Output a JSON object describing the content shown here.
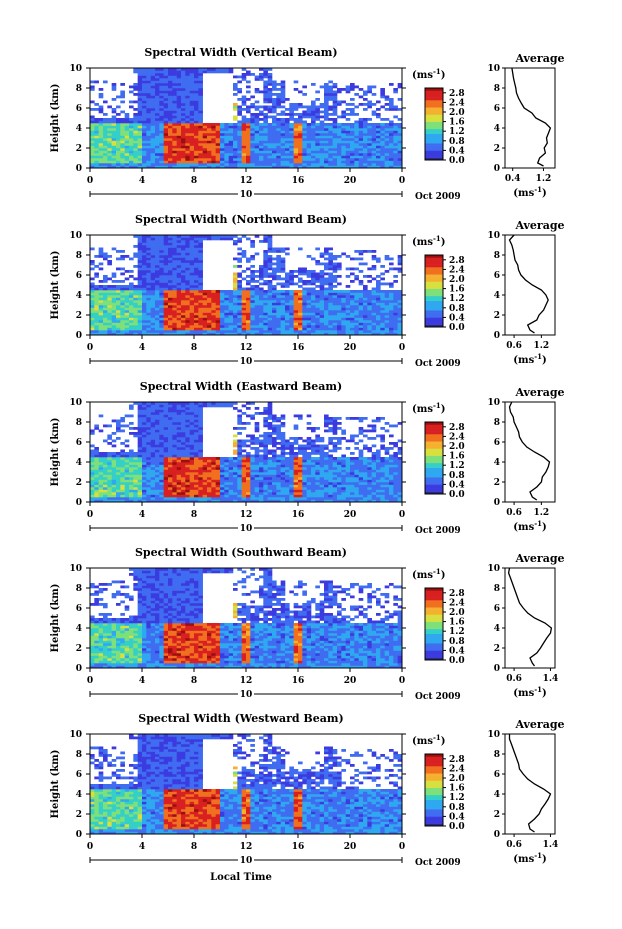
{
  "colors": {
    "scale": [
      "#2a2a78",
      "#3b3be0",
      "#3f6cf0",
      "#2fa8f0",
      "#34d0c8",
      "#7fe07a",
      "#d8e040",
      "#f5b030",
      "#f07020",
      "#d82020",
      "#9a1010"
    ]
  },
  "shared": {
    "xlabel": "Local Time",
    "x_ticks": [
      "0",
      "4",
      "8",
      "12",
      "16",
      "20",
      "0"
    ],
    "date_day": "10",
    "date_month": "Oct 2009",
    "y_ticks": [
      "0",
      "2",
      "4",
      "6",
      "8",
      "10"
    ],
    "ylabel": "Height (km)",
    "colorbar_unit": "(ms",
    "colorbar_unit_exp": "-1",
    "colorbar_unit_close": ")",
    "colorbar_ticks": [
      "0.0",
      "0.4",
      "0.8",
      "1.2",
      "1.6",
      "2.0",
      "2.4",
      "2.8"
    ],
    "avg_title": "Average",
    "avg_xlabel": "(ms",
    "avg_xlabel_exp": "-1",
    "avg_xlabel_close": ")",
    "avg_y_ticks": [
      "0",
      "2",
      "4",
      "6",
      "8",
      "10"
    ]
  },
  "chart_data": [
    {
      "type": "heatmap",
      "title": "Spectral Width (Vertical Beam)",
      "xlim": [
        0,
        24
      ],
      "ylim": [
        0,
        10
      ],
      "clim": [
        0,
        3.0
      ],
      "avg_type": "line",
      "avg_x_ticks": [
        "0.4",
        "1.2"
      ],
      "avg_xlim": [
        0.2,
        1.5
      ],
      "avg_profile": {
        "height": [
          0.2,
          0.5,
          1.0,
          1.5,
          2.0,
          2.5,
          3.0,
          3.5,
          4.0,
          4.5,
          5.0,
          5.5,
          6.0,
          6.5,
          7.0,
          7.5,
          8.0,
          8.5,
          9.0,
          9.5,
          10.0
        ],
        "width": [
          1.2,
          1.05,
          1.1,
          1.25,
          1.22,
          1.3,
          1.28,
          1.33,
          1.38,
          1.25,
          1.0,
          0.9,
          0.7,
          0.62,
          0.55,
          0.5,
          0.48,
          0.45,
          0.42,
          0.4,
          0.38
        ]
      }
    },
    {
      "type": "heatmap",
      "title": "Spectral Width (Northward Beam)",
      "xlim": [
        0,
        24
      ],
      "ylim": [
        0,
        10
      ],
      "clim": [
        0,
        3.0
      ],
      "avg_type": "line",
      "avg_x_ticks": [
        "0.6",
        "1.2"
      ],
      "avg_xlim": [
        0.4,
        1.5
      ],
      "avg_profile": {
        "height": [
          0.2,
          0.5,
          1.0,
          1.5,
          2.0,
          2.5,
          3.0,
          3.5,
          4.0,
          4.5,
          5.0,
          5.5,
          6.0,
          6.5,
          7.0,
          7.5,
          8.0,
          8.5,
          9.0,
          9.5,
          10.0
        ],
        "width": [
          1.05,
          0.95,
          0.9,
          1.1,
          1.15,
          1.25,
          1.3,
          1.35,
          1.3,
          1.2,
          1.0,
          0.85,
          0.75,
          0.7,
          0.68,
          0.62,
          0.6,
          0.58,
          0.55,
          0.5,
          0.6
        ]
      }
    },
    {
      "type": "heatmap",
      "title": "Spectral Width (Eastward Beam)",
      "xlim": [
        0,
        24
      ],
      "ylim": [
        0,
        10
      ],
      "clim": [
        0,
        3.0
      ],
      "avg_type": "line",
      "avg_x_ticks": [
        "0.6",
        "1.2"
      ],
      "avg_xlim": [
        0.4,
        1.5
      ],
      "avg_profile": {
        "height": [
          0.2,
          0.5,
          1.0,
          1.5,
          2.0,
          2.5,
          3.0,
          3.5,
          4.0,
          4.5,
          5.0,
          5.5,
          6.0,
          6.5,
          7.0,
          7.5,
          8.0,
          8.5,
          9.0,
          9.5,
          10.0
        ],
        "width": [
          1.1,
          1.0,
          0.95,
          1.1,
          1.2,
          1.22,
          1.3,
          1.35,
          1.38,
          1.25,
          1.05,
          0.88,
          0.78,
          0.72,
          0.7,
          0.65,
          0.6,
          0.58,
          0.52,
          0.5,
          0.55
        ]
      }
    },
    {
      "type": "heatmap",
      "title": "Spectral Width (Southward Beam)",
      "xlim": [
        0,
        24
      ],
      "ylim": [
        0,
        10
      ],
      "clim": [
        0,
        3.0
      ],
      "avg_type": "line",
      "avg_x_ticks": [
        "0.6",
        "1.4"
      ],
      "avg_xlim": [
        0.4,
        1.5
      ],
      "avg_profile": {
        "height": [
          0.2,
          0.5,
          1.0,
          1.5,
          2.0,
          2.5,
          3.0,
          3.5,
          4.0,
          4.5,
          5.0,
          5.5,
          6.0,
          6.5,
          7.0,
          7.5,
          8.0,
          8.5,
          9.0,
          9.5,
          10.0
        ],
        "width": [
          1.05,
          1.0,
          0.95,
          1.1,
          1.18,
          1.25,
          1.32,
          1.4,
          1.42,
          1.28,
          1.05,
          0.9,
          0.8,
          0.72,
          0.68,
          0.64,
          0.6,
          0.56,
          0.52,
          0.48,
          0.5
        ]
      }
    },
    {
      "type": "heatmap",
      "title": "Spectral Width (Westward Beam)",
      "xlim": [
        0,
        24
      ],
      "ylim": [
        0,
        10
      ],
      "clim": [
        0,
        3.0
      ],
      "avg_type": "line",
      "avg_x_ticks": [
        "0.6",
        "1.4"
      ],
      "avg_xlim": [
        0.4,
        1.5
      ],
      "avg_profile": {
        "height": [
          0.2,
          0.5,
          1.0,
          1.5,
          2.0,
          2.5,
          3.0,
          3.5,
          4.0,
          4.5,
          5.0,
          5.5,
          6.0,
          6.5,
          7.0,
          7.5,
          8.0,
          8.5,
          9.0,
          9.5,
          10.0
        ],
        "width": [
          1.05,
          0.95,
          0.92,
          1.05,
          1.15,
          1.2,
          1.28,
          1.35,
          1.4,
          1.25,
          1.05,
          0.9,
          0.8,
          0.72,
          0.7,
          0.66,
          0.62,
          0.58,
          0.54,
          0.5,
          0.5
        ]
      }
    }
  ]
}
